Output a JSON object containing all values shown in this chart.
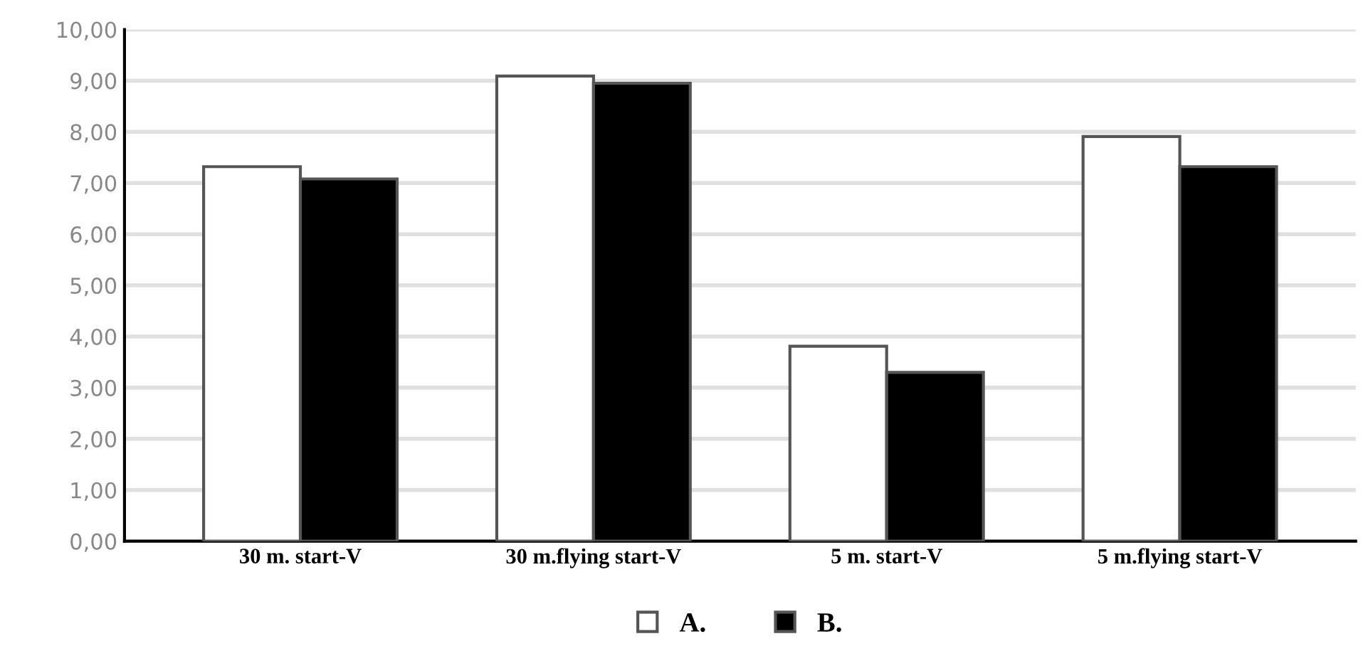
{
  "chart_data": {
    "type": "bar",
    "categories": [
      "30 m. start-V",
      "30 m.flying start-V",
      "5 m. start-V",
      "5 m.flying start-V"
    ],
    "series": [
      {
        "name": "A.",
        "color": "#ffffff",
        "values": [
          7.32,
          9.09,
          3.81,
          7.91
        ]
      },
      {
        "name": "B.",
        "color": "#000000",
        "values": [
          7.08,
          8.95,
          3.3,
          7.32
        ]
      }
    ],
    "ylim": [
      0,
      10
    ],
    "yticks": [
      {
        "value": 0,
        "label": "0,00"
      },
      {
        "value": 1,
        "label": "1,00"
      },
      {
        "value": 2,
        "label": "2,00"
      },
      {
        "value": 3,
        "label": "3,00"
      },
      {
        "value": 4,
        "label": "4,00"
      },
      {
        "value": 5,
        "label": "5,00"
      },
      {
        "value": 6,
        "label": "6,00"
      },
      {
        "value": 7,
        "label": "7,00"
      },
      {
        "value": 8,
        "label": "8,00"
      },
      {
        "value": 9,
        "label": "9,00"
      },
      {
        "value": 10,
        "label": "10,00"
      }
    ],
    "grid": "y",
    "legend": "bottom"
  }
}
